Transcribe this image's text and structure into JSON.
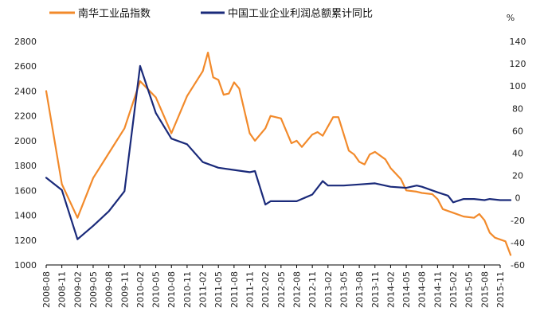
{
  "chart_data": {
    "type": "line",
    "unit_label_right": "%",
    "x": [
      "2008-08",
      "2008-11",
      "2009-02",
      "2009-05",
      "2009-08",
      "2009-11",
      "2010-02",
      "2010-05",
      "2010-08",
      "2010-11",
      "2011-02",
      "2011-05",
      "2011-08",
      "2011-11",
      "2012-02",
      "2012-05",
      "2012-08",
      "2012-11",
      "2013-02",
      "2013-05",
      "2013-08",
      "2013-11",
      "2014-02",
      "2014-05",
      "2014-08",
      "2014-11",
      "2015-02",
      "2015-05",
      "2015-08",
      "2015-11"
    ],
    "left_axis": {
      "ylim": [
        1000,
        2800
      ],
      "ticks": [
        1000,
        1200,
        1400,
        1600,
        1800,
        2000,
        2200,
        2400,
        2600,
        2800
      ]
    },
    "right_axis": {
      "ylim": [
        -60,
        140
      ],
      "ticks": [
        -60,
        -40,
        -20,
        0,
        20,
        40,
        60,
        80,
        100,
        120,
        140
      ]
    },
    "series": [
      {
        "name": "南华工业品指数",
        "axis": "left",
        "color": "#f28a2b",
        "points": [
          [
            "2008-08",
            2400
          ],
          [
            "2008-11",
            1650
          ],
          [
            "2009-02",
            1380
          ],
          [
            "2009-05",
            1700
          ],
          [
            "2009-08",
            1900
          ],
          [
            "2009-11",
            2100
          ],
          [
            "2010-02",
            2480
          ],
          [
            "2010-05",
            2350
          ],
          [
            "2010-08",
            2060
          ],
          [
            "2010-11",
            2360
          ],
          [
            "2011-02",
            2560
          ],
          [
            "2011-03",
            2710
          ],
          [
            "2011-04",
            2510
          ],
          [
            "2011-05",
            2490
          ],
          [
            "2011-06",
            2370
          ],
          [
            "2011-07",
            2380
          ],
          [
            "2011-08",
            2470
          ],
          [
            "2011-09",
            2420
          ],
          [
            "2011-11",
            2060
          ],
          [
            "2011-12",
            2000
          ],
          [
            "2012-02",
            2100
          ],
          [
            "2012-03",
            2200
          ],
          [
            "2012-05",
            2180
          ],
          [
            "2012-07",
            1980
          ],
          [
            "2012-08",
            2000
          ],
          [
            "2012-09",
            1950
          ],
          [
            "2012-11",
            2050
          ],
          [
            "2012-12",
            2070
          ],
          [
            "2013-01",
            2040
          ],
          [
            "2013-03",
            2190
          ],
          [
            "2013-04",
            2190
          ],
          [
            "2013-06",
            1920
          ],
          [
            "2013-07",
            1890
          ],
          [
            "2013-08",
            1830
          ],
          [
            "2013-09",
            1810
          ],
          [
            "2013-10",
            1890
          ],
          [
            "2013-11",
            1910
          ],
          [
            "2014-01",
            1850
          ],
          [
            "2014-02",
            1780
          ],
          [
            "2014-04",
            1690
          ],
          [
            "2014-05",
            1600
          ],
          [
            "2014-07",
            1590
          ],
          [
            "2014-08",
            1580
          ],
          [
            "2014-10",
            1570
          ],
          [
            "2014-11",
            1530
          ],
          [
            "2014-12",
            1450
          ],
          [
            "2015-02",
            1420
          ],
          [
            "2015-04",
            1390
          ],
          [
            "2015-06",
            1380
          ],
          [
            "2015-07",
            1410
          ],
          [
            "2015-08",
            1360
          ],
          [
            "2015-09",
            1260
          ],
          [
            "2015-10",
            1220
          ],
          [
            "2015-12",
            1190
          ],
          [
            "2016-01",
            1080
          ]
        ]
      },
      {
        "name": "中国工业企业利润总额累计同比",
        "axis": "right",
        "color": "#1a2a7a",
        "points": [
          [
            "2008-08",
            18
          ],
          [
            "2008-11",
            7
          ],
          [
            "2009-02",
            -37
          ],
          [
            "2009-05",
            -25
          ],
          [
            "2009-08",
            -12
          ],
          [
            "2009-11",
            6
          ],
          [
            "2010-02",
            118
          ],
          [
            "2010-05",
            76
          ],
          [
            "2010-08",
            53
          ],
          [
            "2010-11",
            48
          ],
          [
            "2011-02",
            32
          ],
          [
            "2011-05",
            27
          ],
          [
            "2011-08",
            25
          ],
          [
            "2011-11",
            23
          ],
          [
            "2011-12",
            24
          ],
          [
            "2012-02",
            -6
          ],
          [
            "2012-03",
            -3
          ],
          [
            "2012-05",
            -3
          ],
          [
            "2012-08",
            -3
          ],
          [
            "2012-11",
            3
          ],
          [
            "2013-01",
            15
          ],
          [
            "2013-02",
            11
          ],
          [
            "2013-05",
            11
          ],
          [
            "2013-08",
            12
          ],
          [
            "2013-11",
            13
          ],
          [
            "2014-02",
            10
          ],
          [
            "2014-05",
            9
          ],
          [
            "2014-07",
            11
          ],
          [
            "2014-08",
            10
          ],
          [
            "2014-11",
            5
          ],
          [
            "2015-01",
            2
          ],
          [
            "2015-02",
            -4
          ],
          [
            "2015-04",
            -1
          ],
          [
            "2015-06",
            -1
          ],
          [
            "2015-08",
            -2
          ],
          [
            "2015-09",
            -1
          ],
          [
            "2015-11",
            -2
          ],
          [
            "2015-12",
            -2
          ],
          [
            "2016-01",
            -2
          ]
        ]
      }
    ]
  }
}
